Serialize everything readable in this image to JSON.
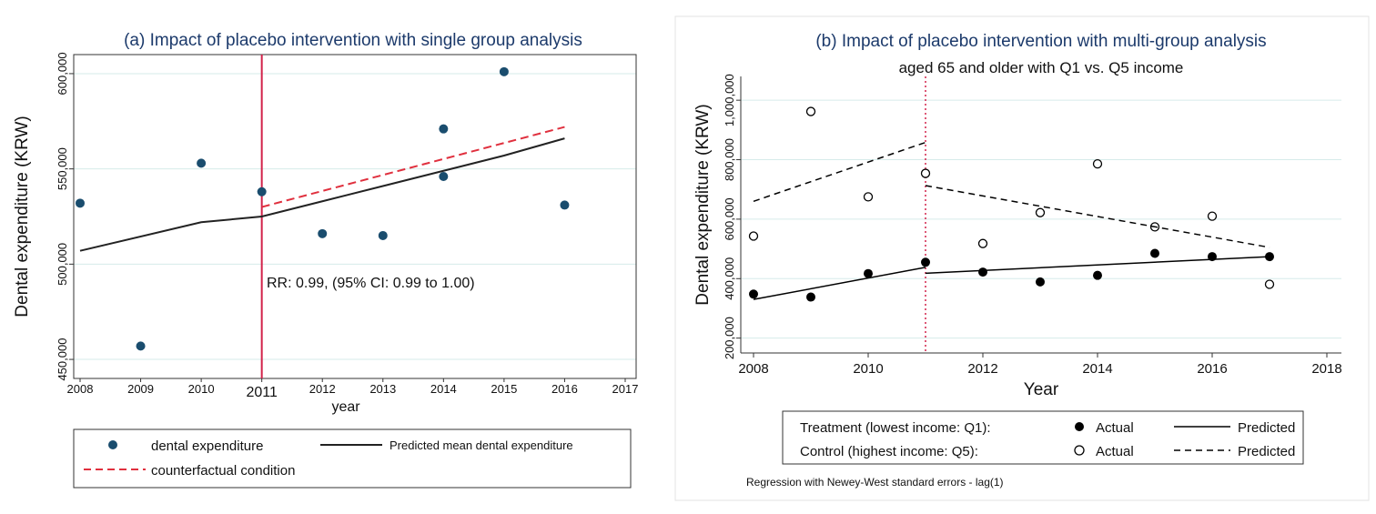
{
  "chart_data": [
    {
      "type": "scatter",
      "title": "(a) Impact of placebo intervention with single group analysis",
      "xlabel": "year",
      "ylabel": "Dental expenditure (KRW)",
      "xlim": [
        2008,
        2017
      ],
      "ylim": [
        440000,
        610000
      ],
      "x_ticks": [
        "2008",
        "2009",
        "2010",
        "2011",
        "2012",
        "2013",
        "2014",
        "2015",
        "2016",
        "2017"
      ],
      "y_ticks": [
        "450,000",
        "500,000",
        "550,000",
        "600,000"
      ],
      "y_tick_values": [
        450000,
        500000,
        550000,
        600000
      ],
      "intervention_x": 2011,
      "annotation": "RR: 0.99, (95% CI: 0.99 to 1.00)",
      "series": [
        {
          "name": "dental expenditure",
          "kind": "points",
          "color": "#1a4d6e",
          "x": [
            2008,
            2009,
            2010,
            2011,
            2012,
            2013,
            2014,
            2014,
            2015,
            2016
          ],
          "y": [
            532000,
            457000,
            553000,
            538000,
            516000,
            515000,
            571000,
            546000,
            601000,
            531000
          ]
        },
        {
          "name": "Predicted mean dental expenditure",
          "kind": "line",
          "color": "#222222",
          "x": [
            2008,
            2010,
            2011,
            2012,
            2013,
            2014,
            2015,
            2016
          ],
          "y": [
            507000,
            522000,
            525000,
            533000,
            541000,
            549000,
            557000,
            566000
          ]
        },
        {
          "name": "counterfactual condition",
          "kind": "dashed",
          "color": "#e0303e",
          "x": [
            2011,
            2016
          ],
          "y": [
            530000,
            572000
          ]
        }
      ],
      "legend": {
        "dental_expenditure": "dental expenditure",
        "predicted": "Predicted mean dental expenditure",
        "counterfactual": "counterfactual condition"
      }
    },
    {
      "type": "scatter",
      "title": "(b) Impact of placebo intervention with multi-group analysis",
      "subtitle": "aged 65 and older with Q1 vs. Q5 income",
      "xlabel": "Year",
      "ylabel": "Dental expenditure (KRW)",
      "xlim": [
        2008,
        2018
      ],
      "ylim": [
        150000,
        1080000
      ],
      "x_ticks": [
        "2008",
        "2010",
        "2012",
        "2014",
        "2016",
        "2018"
      ],
      "x_tick_values": [
        2008,
        2010,
        2012,
        2014,
        2016,
        2018
      ],
      "y_ticks": [
        "200,000",
        "400,000",
        "600,000",
        "800,000",
        "1,000,000"
      ],
      "y_tick_values": [
        200000,
        400000,
        600000,
        800000,
        1000000
      ],
      "intervention_x": 2011,
      "series": [
        {
          "name": "Treatment (lowest income: Q1): Actual",
          "kind": "filled-points",
          "color": "#000000",
          "x": [
            2008,
            2009,
            2010,
            2011,
            2012,
            2013,
            2014,
            2015,
            2016,
            2017
          ],
          "y": [
            348000,
            338000,
            417000,
            455000,
            422000,
            389000,
            411000,
            485000,
            474000,
            474000
          ]
        },
        {
          "name": "Treatment (lowest income: Q1): Predicted",
          "kind": "line",
          "color": "#000000",
          "segments": [
            {
              "x": [
                2008,
                2011
              ],
              "y": [
                330000,
                438000
              ]
            },
            {
              "x": [
                2011,
                2017
              ],
              "y": [
                418000,
                474000
              ]
            }
          ]
        },
        {
          "name": "Control (highest income: Q5): Actual",
          "kind": "hollow-points",
          "color": "#000000",
          "x": [
            2008,
            2009,
            2010,
            2011,
            2012,
            2013,
            2014,
            2015,
            2016,
            2017
          ],
          "y": [
            543000,
            962000,
            675000,
            754000,
            518000,
            622000,
            786000,
            574000,
            610000,
            381000
          ]
        },
        {
          "name": "Control (highest income: Q5): Predicted",
          "kind": "dashed",
          "color": "#000000",
          "segments": [
            {
              "x": [
                2008,
                2011
              ],
              "y": [
                660000,
                858000
              ]
            },
            {
              "x": [
                2011,
                2017
              ],
              "y": [
                713000,
                505000
              ]
            }
          ]
        }
      ],
      "legend": {
        "treatment": "Treatment (lowest income: Q1):",
        "control": "Control (highest income: Q5):",
        "actual": "Actual",
        "predicted": "Predicted"
      },
      "note": "Regression with Newey-West standard errors - lag(1)"
    }
  ]
}
